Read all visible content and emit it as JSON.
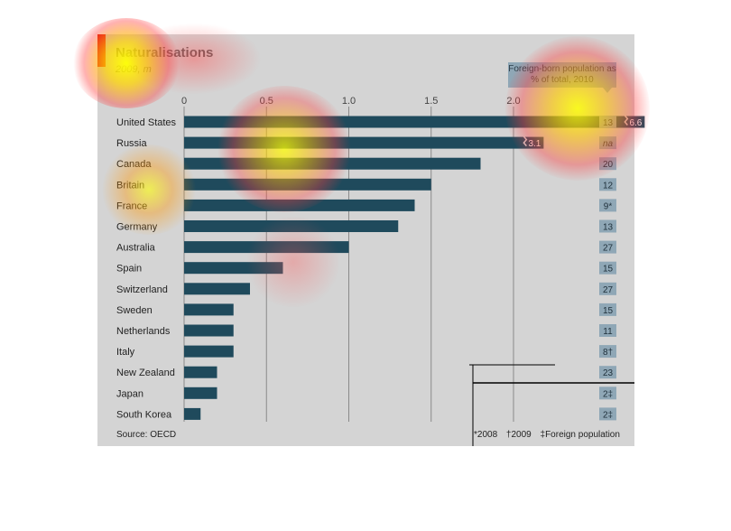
{
  "header": {
    "title": "Naturalisations",
    "subtitle": "2009, m"
  },
  "legend": {
    "foreign_born_label": "Foreign-born population as % of total, 2010"
  },
  "footer": {
    "source": "Source: OECD",
    "note_2008": "*2008",
    "note_2009": "†2009",
    "note_foreign": "‡Foreign population"
  },
  "colors": {
    "bar": "#1f4a5c",
    "badge": "#8fa7b6",
    "panel": "#d4d4d4",
    "accent": "#e3120b"
  },
  "chart_data": {
    "type": "bar",
    "orientation": "horizontal",
    "title": "Naturalisations",
    "subtitle": "2009, m",
    "xlim": [
      0,
      2.3
    ],
    "xticks": [
      0,
      0.5,
      1.0,
      1.5,
      2.0
    ],
    "xtick_labels": [
      "0",
      "0.5",
      "1.0",
      "1.5",
      "2.0"
    ],
    "grid": true,
    "categories": [
      "United States",
      "Russia",
      "Canada",
      "Britain",
      "France",
      "Germany",
      "Australia",
      "Spain",
      "Switzerland",
      "Sweden",
      "Netherlands",
      "Italy",
      "New Zealand",
      "Japan",
      "South Korea"
    ],
    "values": [
      6.6,
      3.1,
      1.8,
      1.5,
      1.4,
      1.3,
      1.0,
      0.6,
      0.4,
      0.3,
      0.3,
      0.3,
      0.2,
      0.2,
      0.1
    ],
    "value_labels": [
      "6.6",
      "3.1",
      "",
      "",
      "",
      "",
      "",
      "",
      "",
      "",
      "",
      "",
      "",
      "",
      ""
    ],
    "foreign_born_pct": [
      "13",
      "na",
      "20",
      "12",
      "9*",
      "13",
      "27",
      "15",
      "27",
      "15",
      "11",
      "8†",
      "23",
      "2‡",
      "2‡"
    ]
  }
}
